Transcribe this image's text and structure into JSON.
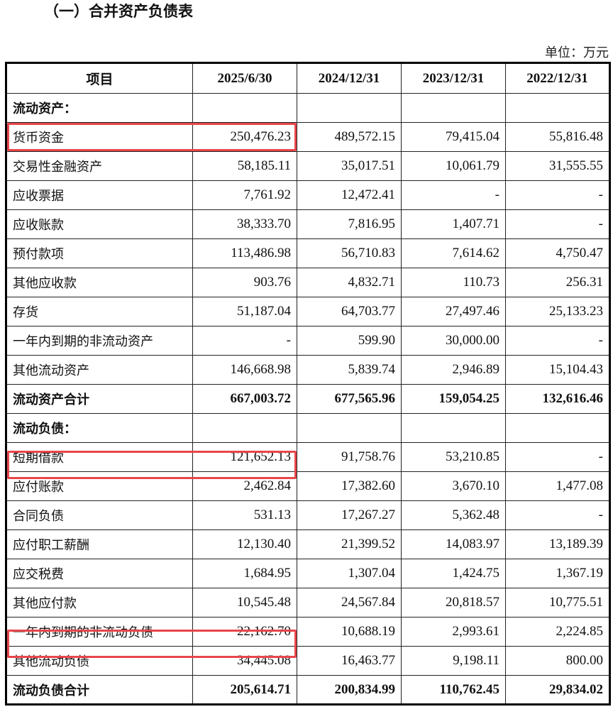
{
  "title": "（一）合并资产负债表",
  "unit": "单位：万元",
  "highlight_color": "#e8464a",
  "columns": [
    "项目",
    "2025/6/30",
    "2024/12/31",
    "2023/12/31",
    "2022/12/31"
  ],
  "rows": [
    {
      "label": "流动资产：",
      "values": [
        "",
        "",
        "",
        ""
      ],
      "bold": true
    },
    {
      "label": "货币资金",
      "values": [
        "250,476.23",
        "489,572.15",
        "79,415.04",
        "55,816.48"
      ],
      "highlighted": true
    },
    {
      "label": "交易性金融资产",
      "values": [
        "58,185.11",
        "35,017.51",
        "10,061.79",
        "31,555.55"
      ]
    },
    {
      "label": "应收票据",
      "values": [
        "7,761.92",
        "12,472.41",
        "-",
        "-"
      ]
    },
    {
      "label": "应收账款",
      "values": [
        "38,333.70",
        "7,816.95",
        "1,407.71",
        "-"
      ]
    },
    {
      "label": "预付款项",
      "values": [
        "113,486.98",
        "56,710.83",
        "7,614.62",
        "4,750.47"
      ]
    },
    {
      "label": "其他应收款",
      "values": [
        "903.76",
        "4,832.71",
        "110.73",
        "256.31"
      ]
    },
    {
      "label": "存货",
      "values": [
        "51,187.04",
        "64,703.77",
        "27,497.46",
        "25,133.23"
      ]
    },
    {
      "label": "一年内到期的非流动资产",
      "values": [
        "-",
        "599.90",
        "30,000.00",
        "-"
      ]
    },
    {
      "label": "其他流动资产",
      "values": [
        "146,668.98",
        "5,839.74",
        "2,946.89",
        "15,104.43"
      ]
    },
    {
      "label": "流动资产合计",
      "values": [
        "667,003.72",
        "677,565.96",
        "159,054.25",
        "132,616.46"
      ],
      "bold": true
    },
    {
      "label": "流动负债：",
      "values": [
        "",
        "",
        "",
        ""
      ],
      "bold": true
    },
    {
      "label": "短期借款",
      "values": [
        "121,652.13",
        "91,758.76",
        "53,210.85",
        "-"
      ],
      "highlighted": true
    },
    {
      "label": "应付账款",
      "values": [
        "2,462.84",
        "17,382.60",
        "3,670.10",
        "1,477.08"
      ]
    },
    {
      "label": "合同负债",
      "values": [
        "531.13",
        "17,267.27",
        "5,362.48",
        "-"
      ]
    },
    {
      "label": "应付职工薪酬",
      "values": [
        "12,130.40",
        "21,399.52",
        "14,083.97",
        "13,189.39"
      ]
    },
    {
      "label": "应交税费",
      "values": [
        "1,684.95",
        "1,307.04",
        "1,424.75",
        "1,367.19"
      ]
    },
    {
      "label": "其他应付款",
      "values": [
        "10,545.48",
        "24,567.84",
        "20,818.57",
        "10,775.51"
      ]
    },
    {
      "label": "一年内到期的非流动负债",
      "values": [
        "22,162.70",
        "10,688.19",
        "2,993.61",
        "2,224.85"
      ],
      "highlighted": true
    },
    {
      "label": "其他流动负债",
      "values": [
        "34,445.08",
        "16,463.77",
        "9,198.11",
        "800.00"
      ]
    },
    {
      "label": "流动负债合计",
      "values": [
        "205,614.71",
        "200,834.99",
        "110,762.45",
        "29,834.02"
      ],
      "bold": true
    }
  ]
}
